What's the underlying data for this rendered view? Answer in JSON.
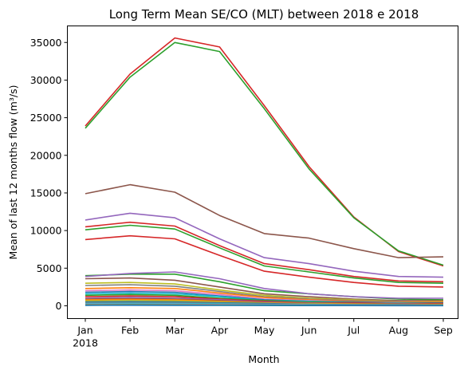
{
  "chart_data": {
    "type": "line",
    "title": "Long Term Mean SE/CO (MLT) between 2018 e 2018",
    "xlabel": "Month",
    "ylabel": "Mean of last 12 months flow (m³/s)",
    "categories": [
      "Jan",
      "Feb",
      "Mar",
      "Apr",
      "May",
      "Jun",
      "Jul",
      "Aug",
      "Sep"
    ],
    "x_sublabels": [
      "2018",
      "",
      "",
      "",
      "",
      "",
      "",
      "",
      ""
    ],
    "yticks": [
      0,
      5000,
      10000,
      15000,
      20000,
      25000,
      30000,
      35000
    ],
    "ylim": [
      -1700,
      37200
    ],
    "grid": false,
    "legend": "none",
    "series": [
      {
        "color": "#d62728",
        "values": [
          23900,
          30800,
          35600,
          34400,
          26600,
          18500,
          11800,
          7200,
          5300
        ]
      },
      {
        "color": "#2ca02c",
        "values": [
          23600,
          30400,
          35000,
          33800,
          26200,
          18200,
          11700,
          7300,
          5400
        ]
      },
      {
        "color": "#8c564b",
        "values": [
          14900,
          16100,
          15100,
          12000,
          9600,
          9000,
          7600,
          6400,
          6500
        ]
      },
      {
        "color": "#9467bd",
        "values": [
          11400,
          12300,
          11700,
          8900,
          6400,
          5600,
          4600,
          3900,
          3800
        ]
      },
      {
        "color": "#d62728",
        "values": [
          10500,
          11100,
          10600,
          8000,
          5600,
          4800,
          3900,
          3300,
          3200
        ]
      },
      {
        "color": "#2ca02c",
        "values": [
          10100,
          10700,
          10200,
          7700,
          5300,
          4500,
          3700,
          3100,
          3000
        ]
      },
      {
        "color": "#d62728",
        "values": [
          8800,
          9300,
          8900,
          6700,
          4600,
          3800,
          3100,
          2600,
          2500
        ]
      },
      {
        "color": "#2ca02c",
        "values": [
          4000,
          4200,
          4200,
          3200,
          2000,
          1600,
          1200,
          900,
          800
        ]
      },
      {
        "color": "#9467bd",
        "values": [
          3900,
          4300,
          4500,
          3600,
          2300,
          1600,
          1200,
          1000,
          1000
        ]
      },
      {
        "color": "#8c564b",
        "values": [
          3600,
          3700,
          3400,
          2500,
          1600,
          1200,
          900,
          700,
          700
        ]
      },
      {
        "color": "#bcbd22",
        "values": [
          3000,
          3100,
          2900,
          2100,
          1400,
          1000,
          800,
          600,
          600
        ]
      },
      {
        "color": "#7f7f7f",
        "values": [
          2700,
          2800,
          2600,
          1900,
          1200,
          900,
          700,
          600,
          500
        ]
      },
      {
        "color": "#ff7f0e",
        "values": [
          2300,
          2400,
          2300,
          1700,
          1100,
          800,
          600,
          500,
          500
        ]
      },
      {
        "color": "#e377c2",
        "values": [
          2000,
          2100,
          2000,
          1500,
          900,
          700,
          500,
          400,
          400
        ]
      },
      {
        "color": "#1f77b4",
        "values": [
          1800,
          1900,
          1800,
          1300,
          800,
          600,
          500,
          400,
          400
        ]
      },
      {
        "color": "#17becf",
        "values": [
          1600,
          1700,
          1600,
          1200,
          700,
          600,
          400,
          400,
          300
        ]
      },
      {
        "color": "#2ca02c",
        "values": [
          1400,
          1500,
          1400,
          1000,
          700,
          500,
          400,
          300,
          300
        ]
      },
      {
        "color": "#d62728",
        "values": [
          1200,
          1300,
          1200,
          900,
          600,
          400,
          400,
          300,
          300
        ]
      },
      {
        "color": "#9467bd",
        "values": [
          1000,
          1100,
          1000,
          800,
          500,
          400,
          300,
          300,
          200
        ]
      },
      {
        "color": "#8c564b",
        "values": [
          900,
          950,
          900,
          700,
          450,
          350,
          300,
          250,
          200
        ]
      },
      {
        "color": "#ff7f0e",
        "values": [
          800,
          850,
          800,
          600,
          400,
          300,
          250,
          200,
          200
        ]
      },
      {
        "color": "#bcbd22",
        "values": [
          650,
          700,
          650,
          500,
          350,
          250,
          200,
          150,
          150
        ]
      },
      {
        "color": "#1f77b4",
        "values": [
          500,
          550,
          500,
          400,
          300,
          200,
          150,
          150,
          100
        ]
      },
      {
        "color": "#7f7f7f",
        "values": [
          400,
          420,
          400,
          320,
          220,
          170,
          130,
          110,
          100
        ]
      },
      {
        "color": "#17becf",
        "values": [
          300,
          320,
          300,
          250,
          180,
          140,
          110,
          90,
          80
        ]
      },
      {
        "color": "#e377c2",
        "values": [
          200,
          210,
          200,
          170,
          120,
          100,
          80,
          70,
          60
        ]
      },
      {
        "color": "#2ca02c",
        "values": [
          120,
          130,
          120,
          100,
          80,
          60,
          50,
          40,
          40
        ]
      },
      {
        "color": "#1f77b4",
        "values": [
          60,
          65,
          60,
          50,
          40,
          30,
          25,
          20,
          20
        ]
      }
    ]
  }
}
